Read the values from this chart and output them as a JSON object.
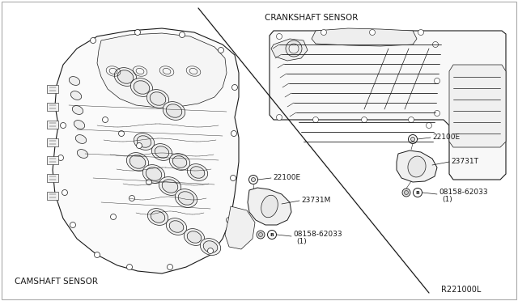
{
  "bg_color": "#ffffff",
  "line_color": "#1a1a1a",
  "label_color": "#1a1a1a",
  "labels": {
    "camshaft": "CAMSHAFT SENSOR",
    "crankshaft": "CRANKSHAFT SENSOR",
    "ref_code": "R221000L",
    "part_22100E_cam": "22100E",
    "part_23731M": "23731M",
    "part_08158_cam": "08158-62033",
    "part_08158_cam_sub": "(1)",
    "part_22100E_crank": "22100E",
    "part_23731T": "23731T",
    "part_08158_crank": "08158-62033",
    "part_08158_crank_sub": "(1)"
  },
  "figsize": [
    6.4,
    3.72
  ],
  "dpi": 100
}
